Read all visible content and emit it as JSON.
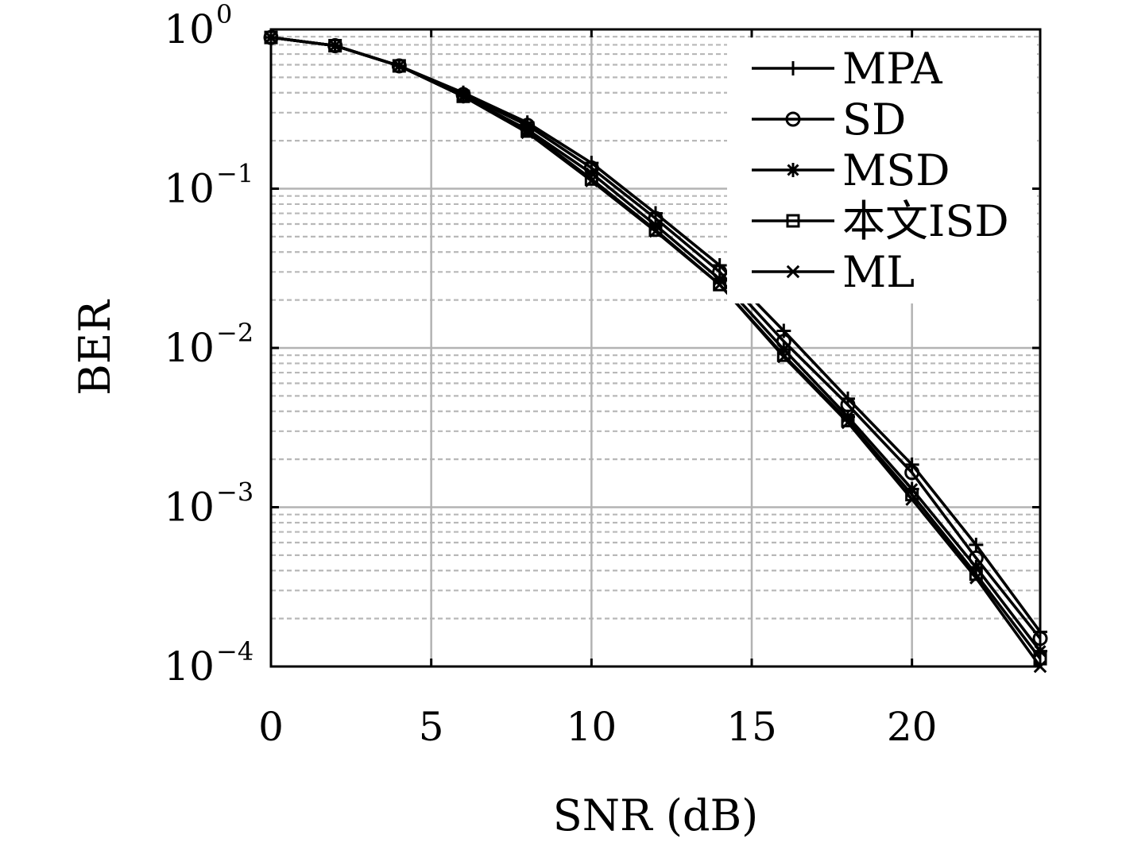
{
  "chart_data": {
    "type": "line",
    "xlabel": "SNR (dB)",
    "ylabel": "BER",
    "xlim": [
      0,
      24
    ],
    "ylim": [
      0.0001,
      1
    ],
    "yscale": "log",
    "xticks": [
      0,
      5,
      10,
      15,
      20
    ],
    "xtick_labels": [
      "0",
      "5",
      "10",
      "15",
      "20"
    ],
    "yticks": [
      1,
      0.1,
      0.01,
      0.001,
      0.0001
    ],
    "ytick_labels": [
      {
        "base": "10",
        "exp": "0"
      },
      {
        "base": "10",
        "exp": "−1"
      },
      {
        "base": "10",
        "exp": "−2"
      },
      {
        "base": "10",
        "exp": "−3"
      },
      {
        "base": "10",
        "exp": "−4"
      }
    ],
    "grid": "major and minor",
    "legend_position": "top-right",
    "x": [
      0,
      2,
      4,
      6,
      8,
      10,
      12,
      14,
      16,
      18,
      20,
      22,
      24
    ],
    "series": [
      {
        "name": "MPA",
        "marker": "plus",
        "values": [
          0.89,
          0.79,
          0.59,
          0.4,
          0.26,
          0.145,
          0.07,
          0.033,
          0.0128,
          0.0048,
          0.00185,
          0.00058,
          0.000165
        ]
      },
      {
        "name": "SD",
        "marker": "circle",
        "values": [
          0.89,
          0.79,
          0.59,
          0.39,
          0.25,
          0.135,
          0.065,
          0.03,
          0.011,
          0.0044,
          0.00165,
          0.00048,
          0.00015
        ]
      },
      {
        "name": "MSD",
        "marker": "asterisk",
        "values": [
          0.89,
          0.79,
          0.59,
          0.38,
          0.235,
          0.125,
          0.059,
          0.027,
          0.0098,
          0.0037,
          0.0013,
          0.00042,
          0.000125
        ]
      },
      {
        "name": "本文ISD",
        "marker": "square",
        "values": [
          0.89,
          0.79,
          0.59,
          0.38,
          0.23,
          0.115,
          0.055,
          0.025,
          0.009,
          0.0035,
          0.0012,
          0.00038,
          0.000112
        ]
      },
      {
        "name": "ML",
        "marker": "x",
        "values": [
          0.89,
          0.79,
          0.59,
          0.38,
          0.225,
          0.112,
          0.054,
          0.025,
          0.0088,
          0.0034,
          0.00112,
          0.00036,
          0.0001
        ]
      }
    ]
  }
}
